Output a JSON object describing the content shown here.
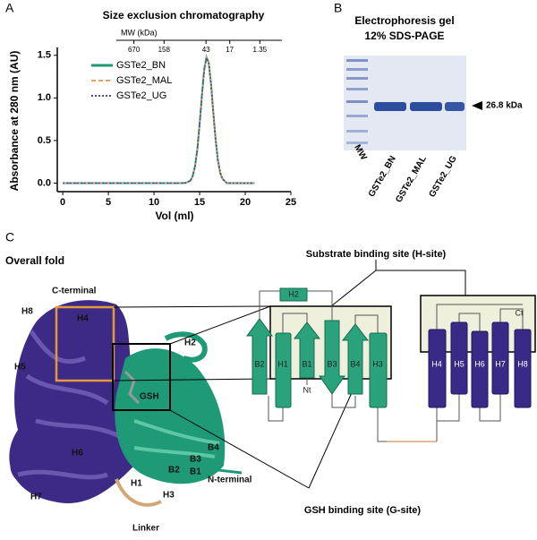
{
  "panel_labels": [
    "A",
    "B",
    "C"
  ],
  "chart_data": {
    "type": "line",
    "title": "Size exclusion chromatography",
    "xlabel": "Vol (ml)",
    "ylabel": "Absorbance at 280 nm (AU)",
    "x": [
      0,
      2,
      4,
      6,
      8,
      10,
      12,
      13,
      13.5,
      14,
      14.25,
      14.5,
      14.75,
      15,
      15.25,
      15.5,
      15.75,
      16,
      16.25,
      16.5,
      16.75,
      17,
      17.25,
      17.5,
      18,
      18.5,
      19,
      21
    ],
    "series": [
      {
        "name": "GSTe2_BN",
        "color": "#1f9a6e",
        "dash": "solid",
        "values": [
          0,
          0,
          0,
          0,
          0,
          0,
          0,
          0,
          0.003,
          0.03,
          0.09,
          0.2,
          0.4,
          0.69,
          1.03,
          1.33,
          1.48,
          1.41,
          1.16,
          0.83,
          0.51,
          0.27,
          0.12,
          0.05,
          0,
          0,
          0,
          0
        ]
      },
      {
        "name": "GSTe2_MAL",
        "color": "#e8a060",
        "dash": "dashed",
        "values": [
          0,
          0,
          0,
          0,
          0,
          0,
          0,
          0,
          0.004,
          0.03,
          0.09,
          0.21,
          0.41,
          0.7,
          1.04,
          1.34,
          1.48,
          1.4,
          1.15,
          0.82,
          0.5,
          0.26,
          0.12,
          0.05,
          0,
          0,
          0,
          0
        ]
      },
      {
        "name": "GSTe2_UG",
        "color": "#4a4a96",
        "dash": "dotted",
        "values": [
          0,
          0,
          0,
          0,
          0,
          0,
          0,
          0,
          0.003,
          0.03,
          0.08,
          0.19,
          0.39,
          0.68,
          1.02,
          1.32,
          1.47,
          1.41,
          1.17,
          0.84,
          0.52,
          0.28,
          0.13,
          0.05,
          0,
          0,
          0,
          0
        ]
      }
    ],
    "xlim": [
      -0.6,
      25
    ],
    "ylim": [
      -0.1,
      1.55
    ],
    "xticks": [
      0,
      5,
      10,
      15,
      20,
      25
    ],
    "yticks": [
      {
        "value": 0,
        "label": "0.0"
      },
      {
        "value": 0.5,
        "label": "0.5"
      },
      {
        "value": 1,
        "label": "1.0"
      },
      1.5
    ],
    "legend": "upper left",
    "mw_axis": {
      "label": "MW (kDa)",
      "ticks": [
        670,
        158,
        43,
        17,
        1.35
      ],
      "positions": [
        7.8,
        11.1,
        15.7,
        18.3,
        21.6
      ]
    }
  },
  "gel": {
    "title": [
      "Electrophoresis gel",
      "12% SDS-PAGE"
    ],
    "lanes": [
      "MW",
      "GSTe2_BN",
      "GSTe2_MAL",
      "GSTe2_UG"
    ],
    "band_label": "26.8 kDa"
  },
  "structure": {
    "title": "Overall fold",
    "labels": [
      "C-terminal",
      "H8",
      "H4",
      "H5",
      "H2",
      "GSH",
      "B4",
      "B3",
      "B2",
      "B1",
      "H1",
      "H3",
      "H6",
      "H7",
      "N-terminal",
      "Linker"
    ]
  },
  "topology": {
    "h_site": "Substrate binding site (H-site)",
    "g_site": "GSH binding site (G-site)",
    "elements": [
      "H2",
      "B2",
      "H1",
      "B1",
      "B3",
      "B4",
      "H3",
      "H4",
      "H5",
      "H6",
      "H7",
      "H8"
    ],
    "termini": [
      "Nt",
      "Ct"
    ]
  }
}
